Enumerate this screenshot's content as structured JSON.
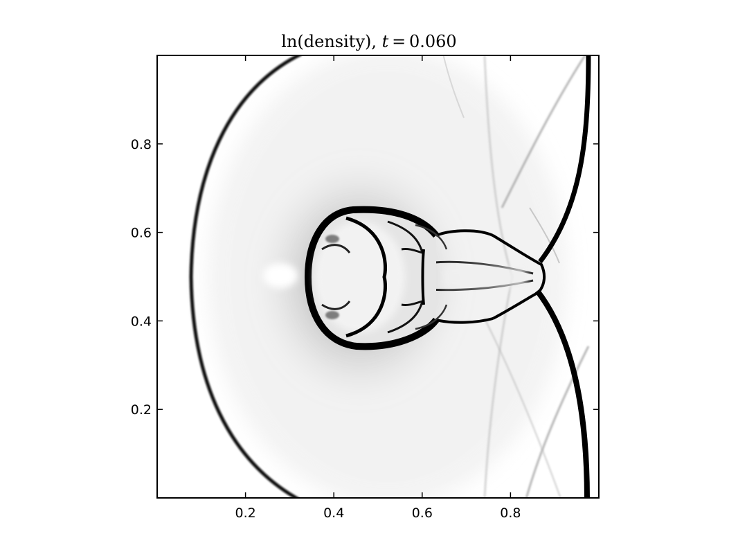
{
  "chart_data": {
    "type": "heatmap",
    "title": "ln(density), t = 0.060",
    "title_parts": {
      "prefix": "ln(density), ",
      "var": "t",
      "eq": " = ",
      "value": "0.060"
    },
    "xlabel": "",
    "ylabel": "",
    "xlim": [
      0.0,
      1.0
    ],
    "ylim": [
      0.0,
      1.0
    ],
    "xticks": [
      0.2,
      0.4,
      0.6,
      0.8
    ],
    "yticks": [
      0.2,
      0.4,
      0.6,
      0.8
    ],
    "xtick_labels": [
      "0.2",
      "0.4",
      "0.6",
      "0.8"
    ],
    "ytick_labels": [
      "0.2",
      "0.4",
      "0.6",
      "0.8"
    ],
    "colormap": "grayscale (high density gradient = black, background = white)",
    "grid": false,
    "features": [
      {
        "name": "left-bow-shock",
        "shape": "arc",
        "x_min": 0.08,
        "y_range": [
          0.0,
          1.0
        ]
      },
      {
        "name": "right-vertical-shock",
        "shape": "curve",
        "x_range": [
          0.86,
          0.97
        ],
        "y_range": [
          0.0,
          1.0
        ]
      },
      {
        "name": "central-bubble",
        "shape": "closed-contour",
        "x_range": [
          0.36,
          0.63
        ],
        "y_range": [
          0.33,
          0.65
        ]
      },
      {
        "name": "triple-point",
        "x": 0.86,
        "y": 0.5
      }
    ]
  },
  "colors": {
    "background": "#ffffff",
    "axes": "#000000",
    "ink": "#000000"
  }
}
